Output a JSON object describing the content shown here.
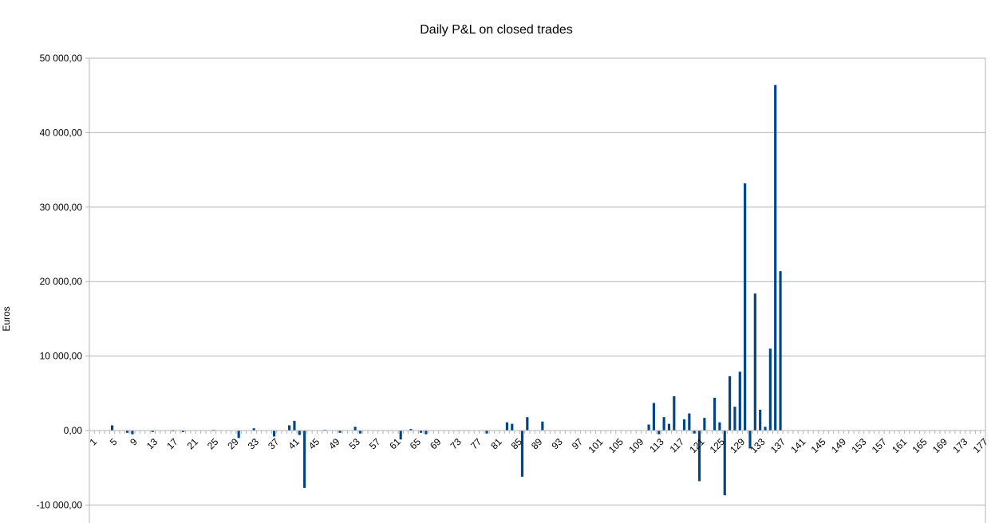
{
  "chart_data": {
    "type": "bar",
    "title": "Daily P&L on closed trades",
    "xlabel": "",
    "ylabel": "Euros",
    "ylim": [
      -12000,
      50000
    ],
    "grid": true,
    "legend": "none",
    "bar_color": "#004586",
    "grid_color": "#b3b3b3",
    "y_ticks": [
      {
        "value": 50000,
        "label": "50 000,00"
      },
      {
        "value": 40000,
        "label": "40 000,00"
      },
      {
        "value": 30000,
        "label": "30 000,00"
      },
      {
        "value": 20000,
        "label": "20 000,00"
      },
      {
        "value": 10000,
        "label": "10 000,00"
      },
      {
        "value": 0,
        "label": "0,00"
      },
      {
        "value": -10000,
        "label": "-10 000,00"
      }
    ],
    "x_start": 1,
    "x_end": 177,
    "x_tick_step": 4,
    "values": [
      0,
      0,
      0,
      0,
      700,
      0,
      0,
      -300,
      -500,
      0,
      0,
      0,
      -200,
      0,
      0,
      0,
      -100,
      0,
      -200,
      0,
      0,
      0,
      0,
      0,
      100,
      0,
      0,
      0,
      0,
      -1000,
      0,
      0,
      300,
      0,
      0,
      0,
      -800,
      0,
      0,
      700,
      1300,
      -600,
      -7700,
      0,
      0,
      0,
      100,
      0,
      0,
      -300,
      0,
      0,
      500,
      -400,
      0,
      0,
      0,
      0,
      0,
      0,
      0,
      -1200,
      0,
      200,
      0,
      -300,
      -500,
      0,
      0,
      0,
      0,
      0,
      0,
      0,
      0,
      0,
      0,
      0,
      -400,
      0,
      0,
      0,
      1100,
      900,
      0,
      -6200,
      1800,
      0,
      0,
      1200,
      0,
      0,
      0,
      0,
      0,
      0,
      0,
      0,
      0,
      0,
      0,
      0,
      0,
      0,
      0,
      0,
      0,
      0,
      0,
      0,
      800,
      3700,
      -500,
      1800,
      900,
      4600,
      0,
      1500,
      2300,
      -400,
      -6800,
      1700,
      0,
      4400,
      1100,
      -8700,
      7300,
      3200,
      7900,
      33200,
      -2400,
      18400,
      2800,
      500,
      11000,
      46400,
      21400,
      0,
      0,
      0,
      0,
      0,
      0,
      0,
      0,
      0,
      0,
      0,
      0,
      0,
      0,
      0,
      0,
      0,
      0,
      0,
      0,
      0,
      0,
      0,
      0,
      0,
      0,
      0,
      0,
      0,
      0,
      0,
      0,
      0,
      0,
      0,
      0,
      0,
      0,
      0,
      0
    ]
  }
}
